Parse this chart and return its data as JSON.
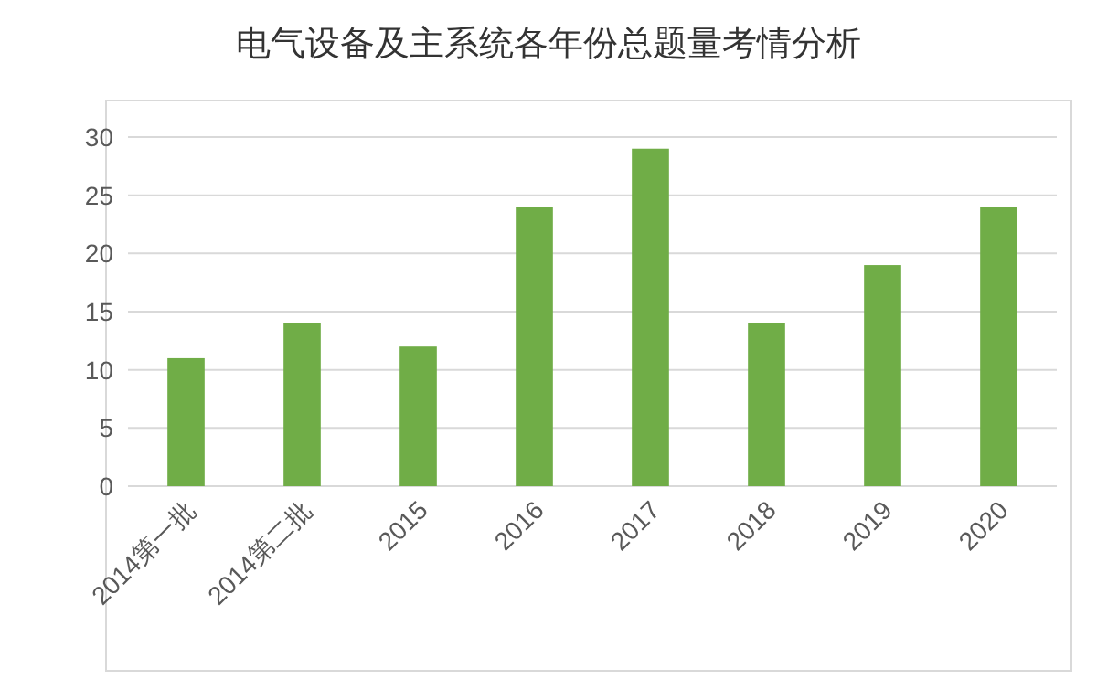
{
  "chart_data": {
    "type": "bar",
    "title": "电气设备及主系统各年份总题量考情分析",
    "categories": [
      "2014第一批",
      "2014第二批",
      "2015",
      "2016",
      "2017",
      "2018",
      "2019",
      "2020"
    ],
    "values": [
      11,
      14,
      12,
      24,
      29,
      14,
      19,
      24
    ],
    "color": "#70ad47",
    "ylim": [
      0,
      30
    ],
    "yticks": [
      0,
      5,
      10,
      15,
      20,
      25,
      30
    ],
    "grid": "y"
  }
}
